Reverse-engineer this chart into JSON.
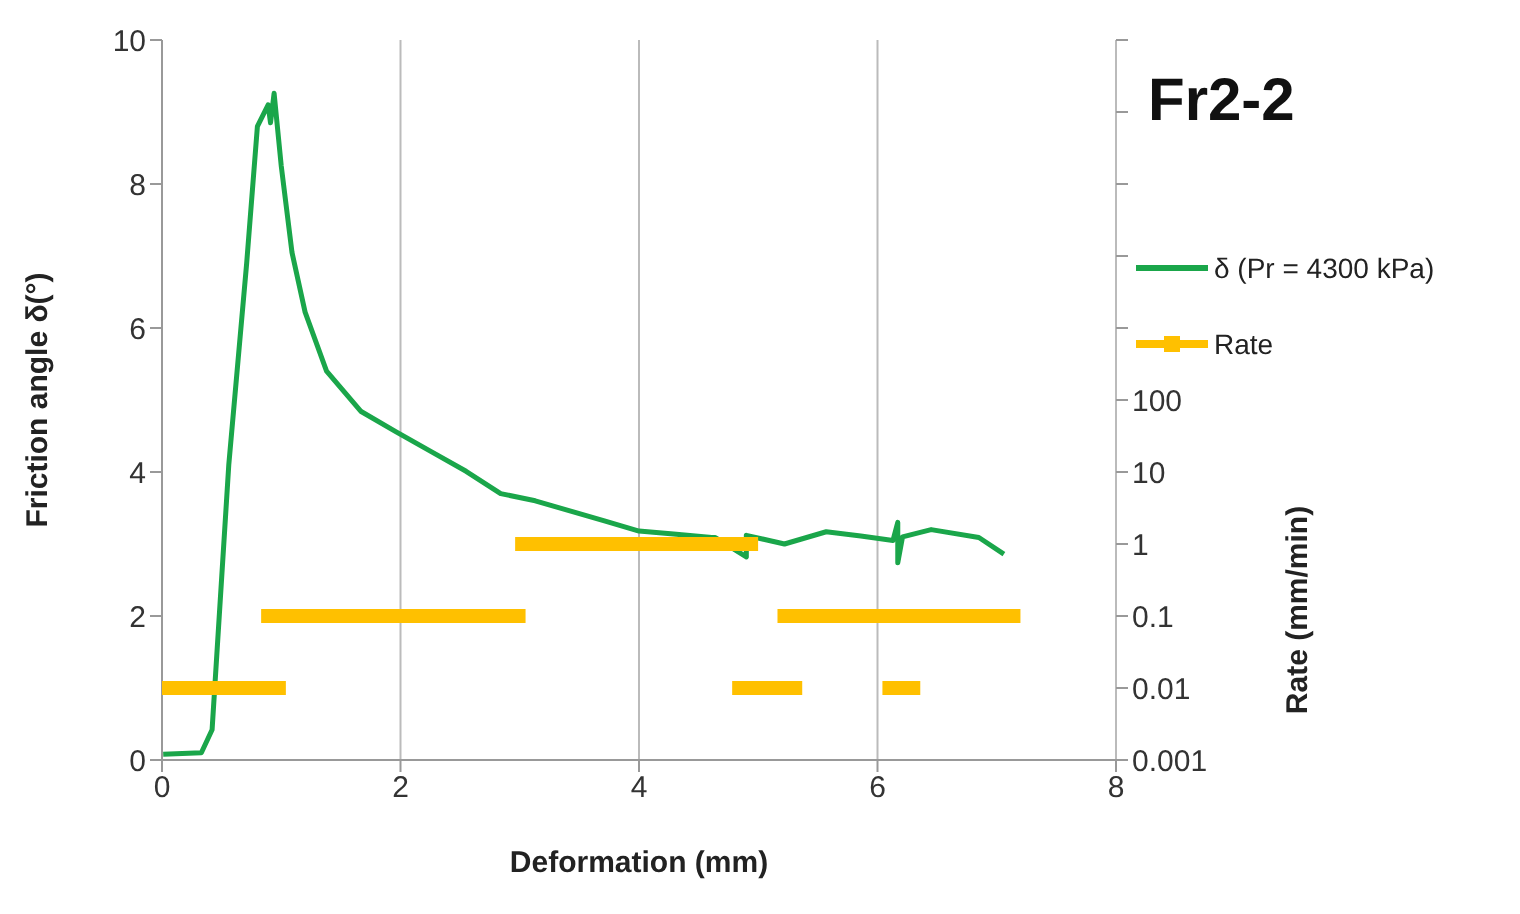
{
  "chart_data": {
    "type": "line",
    "title": "Fr2-2",
    "xlabel": "Deformation (mm)",
    "ylabel": "Friction angle δ(°)",
    "y2label": "Rate (mm/min)",
    "xlim": [
      0,
      8
    ],
    "xticks": [
      0,
      2,
      4,
      6,
      8
    ],
    "ylim": [
      0,
      10
    ],
    "yticks": [
      0,
      2,
      4,
      6,
      8,
      10
    ],
    "y2lim": [
      0.001,
      10000000
    ],
    "y2ticks": [
      0.001,
      0.01,
      0.1,
      1,
      10,
      100,
      {
        "value": 1000,
        "label": null
      },
      {
        "value": 10000,
        "label": null
      },
      {
        "value": 100000,
        "label": null
      },
      {
        "value": 1000000,
        "label": null
      },
      {
        "value": 10000000,
        "label": null
      }
    ],
    "log": "y2",
    "grid": true,
    "legend": "right",
    "series": [
      {
        "name": "δ (Pr = 4300 kPa)",
        "color": "#1aa64a",
        "marker": "none",
        "x": [
          0.01,
          0.33,
          0.42,
          0.56,
          0.71,
          0.8,
          0.89,
          0.91,
          0.94,
          1.0,
          1.09,
          1.2,
          1.38,
          1.67,
          1.96,
          2.25,
          2.55,
          2.84,
          3.13,
          3.71,
          4.0,
          4.29,
          4.61,
          4.64,
          4.9,
          4.9,
          5.22,
          5.57,
          5.86,
          6.13,
          6.17,
          6.17,
          6.21,
          6.45,
          6.85,
          7.06
        ],
        "values": [
          0.08,
          0.1,
          0.42,
          4.1,
          6.9,
          8.8,
          9.1,
          8.85,
          9.26,
          8.25,
          7.05,
          6.22,
          5.4,
          4.84,
          4.56,
          4.29,
          4.01,
          3.7,
          3.6,
          3.32,
          3.18,
          3.14,
          3.09,
          3.09,
          2.82,
          3.12,
          3.0,
          3.17,
          3.11,
          3.05,
          3.3,
          2.74,
          3.1,
          3.2,
          3.09,
          2.86
        ]
      },
      {
        "name": "Rate",
        "color": "#ffc000",
        "axis": "y2",
        "marker": "square",
        "x": [
          0,
          0.98,
          null,
          0.89,
          2.99,
          null,
          3.02,
          4.94,
          null,
          4.84,
          5.31,
          null,
          5.22,
          7.14,
          null,
          6.1,
          6.3
        ],
        "values": [
          0.01,
          0.01,
          null,
          0.1,
          0.1,
          null,
          1,
          1,
          null,
          0.01,
          0.01,
          null,
          0.1,
          0.1,
          null,
          0.01,
          0.01
        ]
      }
    ]
  }
}
